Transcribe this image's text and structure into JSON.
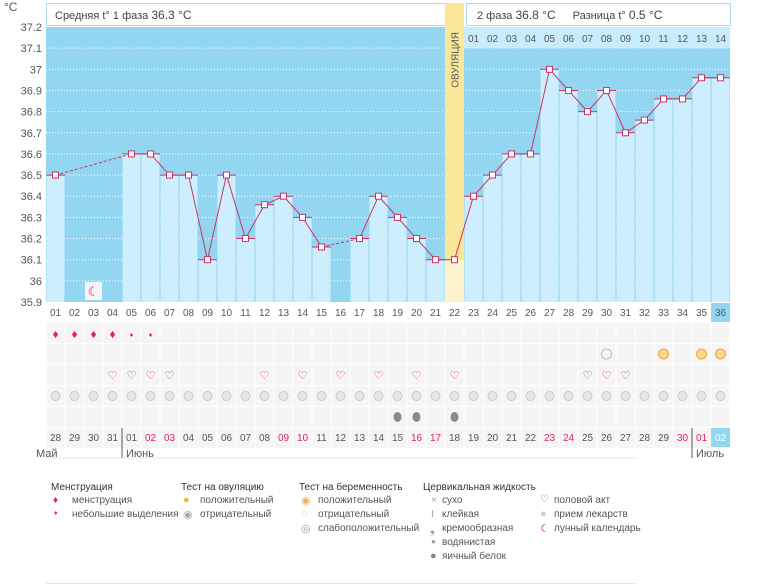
{
  "header": {
    "unit": "°C",
    "phase1_label": "Средняя t° 1 фаза",
    "phase1_value": "36.3 °C",
    "phase2_label": "2 фаза",
    "phase2_value": "36.8 °C",
    "diff_label": "Разница t°",
    "diff_value": "0.5 °C",
    "ovulation_label": "ОВУЛЯЦИЯ"
  },
  "chart_data": {
    "type": "line",
    "title": "",
    "ylabel": "°C",
    "ylim": [
      35.9,
      37.2
    ],
    "yticks": [
      "37.2",
      "37.1",
      "37",
      "36.9",
      "36.8",
      "36.7",
      "36.6",
      "36.5",
      "36.4",
      "36.3",
      "36.2",
      "36.1",
      "36",
      "35.9"
    ],
    "cycle_days": [
      "01",
      "02",
      "03",
      "04",
      "05",
      "06",
      "07",
      "08",
      "09",
      "10",
      "11",
      "12",
      "13",
      "14",
      "15",
      "16",
      "17",
      "18",
      "19",
      "20",
      "21",
      "22",
      "23",
      "24",
      "25",
      "26",
      "27",
      "28",
      "29",
      "30",
      "31",
      "32",
      "33",
      "34",
      "35",
      "36"
    ],
    "temperatures": [
      36.5,
      null,
      null,
      null,
      36.6,
      36.6,
      36.5,
      36.5,
      36.1,
      36.5,
      36.2,
      36.36,
      36.4,
      36.3,
      36.16,
      null,
      36.2,
      36.4,
      36.3,
      36.2,
      36.1,
      36.1,
      36.4,
      36.5,
      36.6,
      36.6,
      37.0,
      36.9,
      36.8,
      36.9,
      36.7,
      36.76,
      36.86,
      36.86,
      36.96,
      36.96
    ],
    "ovulation_day": 22,
    "phase2_day_labels": [
      "01",
      "02",
      "03",
      "04",
      "05",
      "06",
      "07",
      "08",
      "09",
      "10",
      "11",
      "12",
      "13",
      "14"
    ],
    "moon_day": 3,
    "current_day": 36
  },
  "rows": {
    "menstruation": {
      "heavy": [
        1,
        2,
        3,
        4
      ],
      "light": [
        5,
        6
      ]
    },
    "pregnancy_test": {
      "negative": [
        30
      ],
      "positive": [
        33,
        35,
        36
      ]
    },
    "intercourse": [
      4,
      5,
      6,
      7,
      12,
      14,
      16,
      18,
      20,
      22,
      29,
      30,
      31
    ],
    "medication": "all",
    "cervical_egg_white": [
      19,
      20,
      22
    ],
    "dates": [
      "28",
      "29",
      "30",
      "31",
      "01",
      "02",
      "03",
      "04",
      "05",
      "06",
      "07",
      "08",
      "09",
      "10",
      "11",
      "12",
      "13",
      "14",
      "15",
      "16",
      "17",
      "18",
      "19",
      "20",
      "21",
      "22",
      "23",
      "24",
      "25",
      "26",
      "27",
      "28",
      "29",
      "30",
      "01",
      "02"
    ],
    "weekend_dates": [
      5,
      6,
      12,
      13,
      19,
      20,
      26,
      27,
      33,
      34
    ],
    "months": [
      {
        "label": "Май"
      },
      {
        "label": "Июнь"
      },
      {
        "label": "Июль"
      }
    ]
  },
  "legend": {
    "menstruation": {
      "title": "Менструация",
      "items": [
        "менструация",
        "небольшие выделения"
      ]
    },
    "ovulation_test": {
      "title": "Тест на овуляцию",
      "items": [
        "положительный",
        "отрицательный"
      ]
    },
    "pregnancy_test": {
      "title": "Тест на беременность",
      "items": [
        "положительный",
        "отрицательный",
        "слабоположительный"
      ]
    },
    "cervical": {
      "title": "Цервикальная жидкость",
      "items": [
        "сухо",
        "клейкая",
        "кремообразная",
        "водянистая",
        "яичный белок"
      ]
    },
    "other": {
      "items": [
        "половой акт",
        "прием лекарств",
        "лунный календарь"
      ]
    }
  },
  "colors": {
    "plot_bg": "#93d6f1",
    "bar": "#cdeefc",
    "line": "#cc3366",
    "ovulation": "#fbe79a",
    "weekend": "#e0245e"
  }
}
